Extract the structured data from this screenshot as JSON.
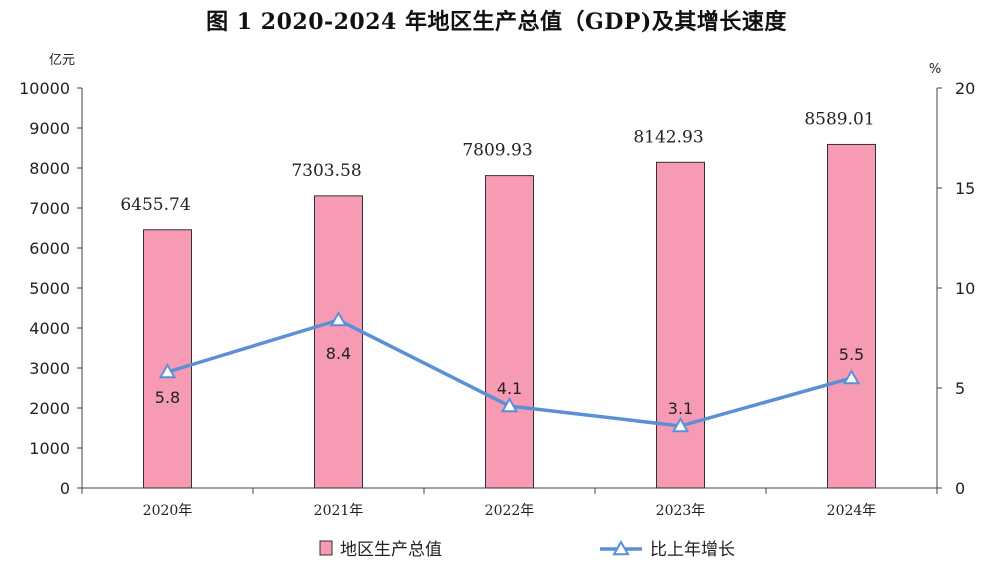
{
  "title": "图 1   2020-2024 年地区生产总值（GDP)及其增长速度",
  "colors": {
    "bar": "#F79BB4",
    "bar_stroke": "#333333",
    "line": "#5B8FD6",
    "marker_fill": "#FFFFFF",
    "axis": "#444444"
  },
  "chart_data": {
    "type": "bar",
    "title": "图 1   2020-2024 年地区生产总值（GDP)及其增长速度",
    "categories": [
      "2020年",
      "2021年",
      "2022年",
      "2023年",
      "2024年"
    ],
    "y_left_unit": "亿元",
    "y_right_unit": "%",
    "ylim_left": [
      0,
      10000
    ],
    "ylim_right": [
      0,
      20
    ],
    "left_ticks": [
      "0",
      "1000",
      "2000",
      "3000",
      "4000",
      "5000",
      "6000",
      "7000",
      "8000",
      "9000",
      "10000"
    ],
    "right_ticks": [
      "0",
      "5",
      "10",
      "15",
      "20"
    ],
    "series": [
      {
        "name": "地区生产总值",
        "type": "bar",
        "axis": "left",
        "values": [
          6455.74,
          7303.58,
          7809.93,
          8142.93,
          8589.01
        ],
        "labels": [
          "6455.74",
          "7303.58",
          "7809.93",
          "8142.93",
          "8589.01"
        ]
      },
      {
        "name": "比上年增长",
        "type": "line",
        "axis": "right",
        "marker": "triangle",
        "values": [
          5.8,
          8.4,
          4.1,
          3.1,
          5.5
        ],
        "labels": [
          "5.8",
          "8.4",
          "4.1",
          "3.1",
          "5.5"
        ]
      }
    ],
    "legend_position": "bottom",
    "grid": false
  }
}
